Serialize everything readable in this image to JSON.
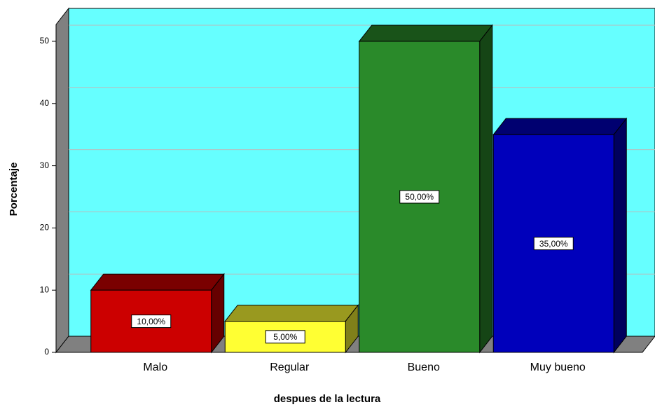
{
  "chart_data": {
    "type": "bar3d",
    "x_label": "despues de la lectura",
    "y_label": "Porcentaje",
    "categories": [
      "Malo",
      "Regular",
      "Bueno",
      "Muy bueno"
    ],
    "values": [
      10,
      5,
      50,
      35
    ],
    "value_labels": [
      "10,00%",
      "5,00%",
      "50,00%",
      "35,00%"
    ],
    "colors": [
      "#cc0000",
      "#ffff33",
      "#2a8a2a",
      "#0000bb"
    ],
    "background": "#66ffff",
    "ylim": [
      0,
      52.7
    ],
    "yticks": [
      0,
      10,
      20,
      30,
      40,
      50
    ],
    "grid": true
  }
}
